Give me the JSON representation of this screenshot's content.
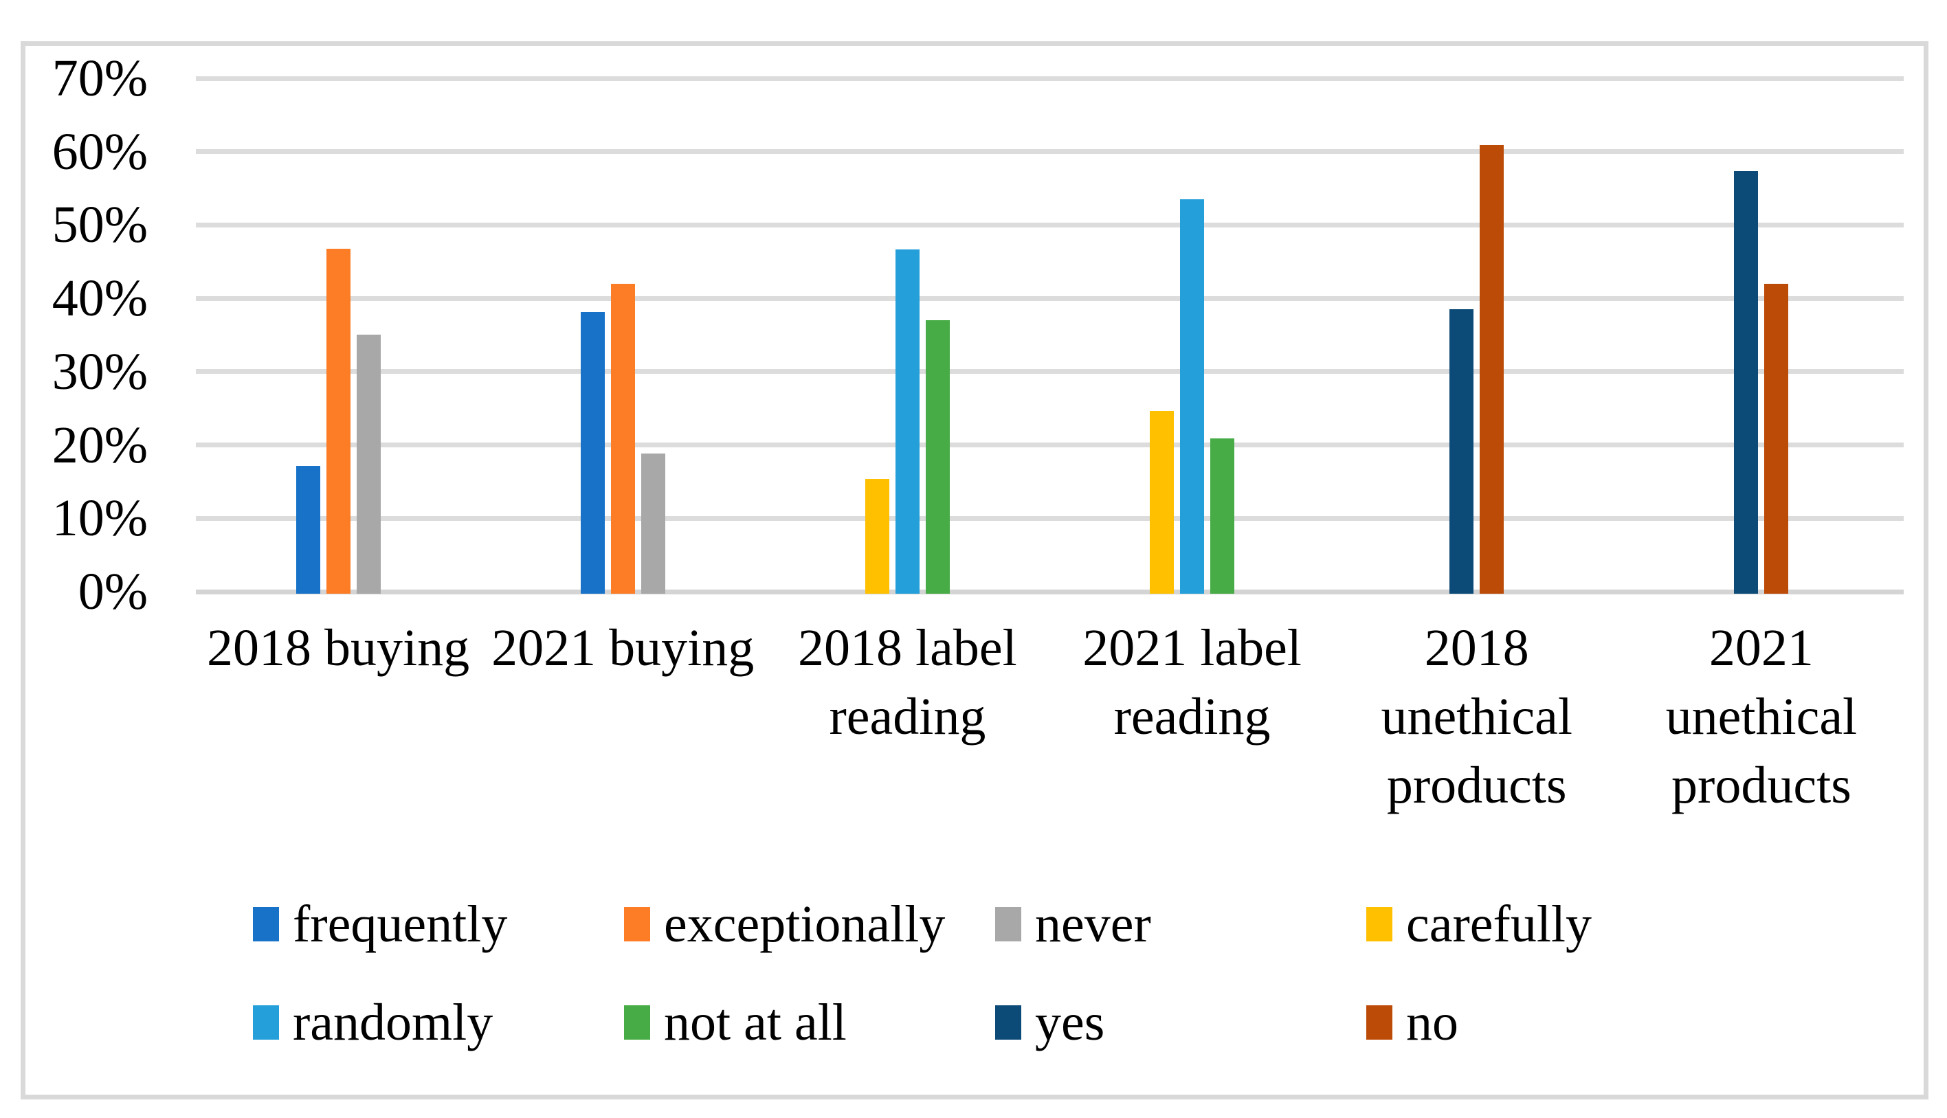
{
  "chart_data": {
    "type": "bar",
    "title": "",
    "xlabel": "",
    "ylabel": "",
    "y_axis": {
      "min": 0,
      "max": 70,
      "step": 10,
      "tick_labels": [
        "0%",
        "10%",
        "20%",
        "30%",
        "40%",
        "50%",
        "60%",
        "70%"
      ],
      "unit": "%"
    },
    "grid": "horizontal",
    "legend_position": "bottom",
    "categories": [
      {
        "id": "2018-buying",
        "lines": [
          "2018 buying"
        ]
      },
      {
        "id": "2021-buying",
        "lines": [
          "2021 buying"
        ]
      },
      {
        "id": "2018-label-reading",
        "lines": [
          "2018 label",
          "reading"
        ]
      },
      {
        "id": "2021-label-reading",
        "lines": [
          "2021 label",
          "reading"
        ]
      },
      {
        "id": "2018-unethical-products",
        "lines": [
          "2018",
          "unethical",
          "products"
        ]
      },
      {
        "id": "2021-unethical-products",
        "lines": [
          "2021",
          "unethical",
          "products"
        ]
      }
    ],
    "series": [
      {
        "name": "frequently",
        "color": "#1772C8",
        "values": [
          17.5,
          38.5,
          null,
          null,
          null,
          null
        ]
      },
      {
        "name": "exceptionally",
        "color": "#FC7D26",
        "values": [
          47.1,
          42.3,
          null,
          null,
          null,
          null
        ]
      },
      {
        "name": "never",
        "color": "#A8A8A8",
        "values": [
          35.4,
          19.2,
          null,
          null,
          null,
          null
        ]
      },
      {
        "name": "carefully",
        "color": "#FFC000",
        "values": [
          null,
          null,
          15.7,
          25.0,
          null,
          null
        ]
      },
      {
        "name": "randomly",
        "color": "#249FDA",
        "values": [
          null,
          null,
          47.0,
          53.8,
          null,
          null
        ]
      },
      {
        "name": "not at all",
        "color": "#47AC45",
        "values": [
          null,
          null,
          37.3,
          21.2,
          null,
          null
        ]
      },
      {
        "name": "yes",
        "color": "#0C4A78",
        "values": [
          null,
          null,
          null,
          null,
          38.8,
          57.7
        ]
      },
      {
        "name": "no",
        "color": "#BC4B08",
        "values": [
          null,
          null,
          null,
          null,
          61.2,
          42.3
        ]
      }
    ],
    "legend": {
      "rows": [
        [
          "frequently",
          "exceptionally",
          "never",
          "carefully"
        ],
        [
          "randomly",
          "not at all",
          "yes",
          "no"
        ]
      ]
    }
  },
  "colors": {
    "frame_border": "#D9D9D9",
    "gridline": "#DCDCDC",
    "background": "#FFFFFF",
    "text": "#000000"
  }
}
